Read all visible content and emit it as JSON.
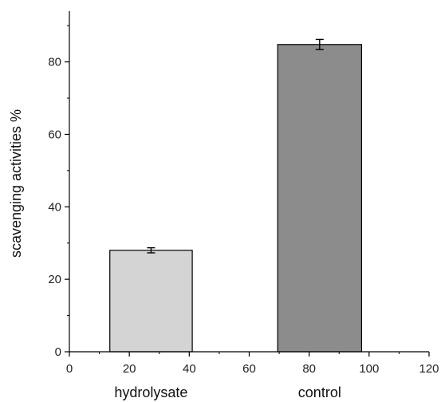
{
  "chart_data": {
    "type": "bar",
    "title": "",
    "xlabel": "",
    "ylabel": "scavenging activities %",
    "xlim": [
      0,
      120
    ],
    "ylim": [
      0,
      94
    ],
    "x_ticks": [
      0,
      20,
      40,
      60,
      80,
      100,
      120
    ],
    "y_ticks": [
      0,
      20,
      40,
      60,
      80
    ],
    "grid": false,
    "legend": "none",
    "bars": [
      {
        "category": "hydrolysate",
        "x_start": 13.5,
        "x_end": 41,
        "value": 28,
        "error": 0.7,
        "color": "#d4d4d4"
      },
      {
        "category": "control",
        "x_start": 69.5,
        "x_end": 97.5,
        "value": 84.8,
        "error": 1.4,
        "color": "#8c8c8c"
      }
    ]
  }
}
